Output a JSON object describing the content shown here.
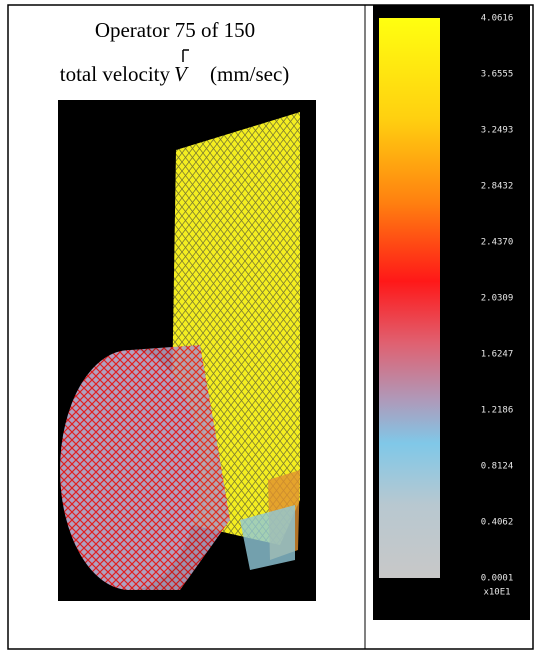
{
  "figure": {
    "title": "Operator 75 of 150",
    "quantity": "total velocity",
    "symbol": "V",
    "units": "(mm/sec)"
  },
  "colorbar": {
    "labels": [
      "4.0616",
      "3.6555",
      "3.2493",
      "2.8432",
      "2.4370",
      "2.0309",
      "1.6247",
      "1.2186",
      "0.8124",
      "0.4062",
      "0.0001"
    ],
    "multiplier": "x10E1"
  }
}
